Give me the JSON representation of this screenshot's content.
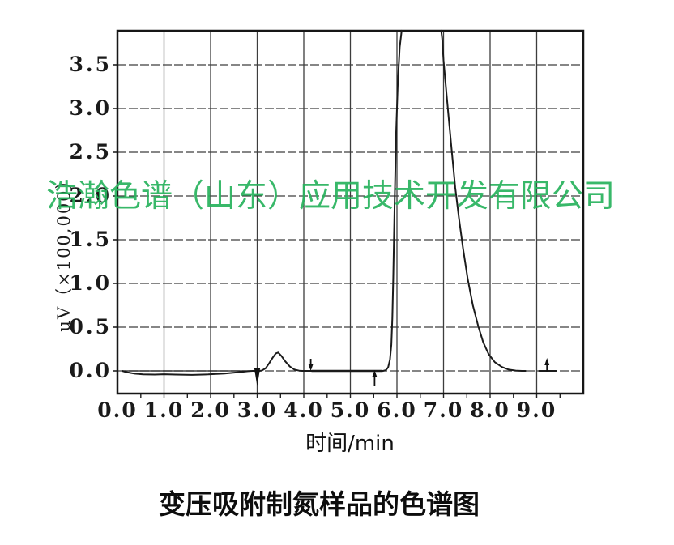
{
  "watermark": {
    "text": "浩瀚色谱（山东）应用技术开发有限公司",
    "color_hex": "#29b35e"
  },
  "caption": "变压吸附制氮样品的色谱图",
  "chart_data": {
    "type": "line",
    "title": "",
    "xlabel": "时间/min",
    "ylabel": "uV（×100,000）",
    "x_tick_labels": [
      "0.0",
      "1.0",
      "2.0",
      "3.0",
      "4.0",
      "5.0",
      "6.0",
      "7.0",
      "8.0",
      "9.0"
    ],
    "y_tick_labels": [
      "3.5",
      "3.0",
      "2.5",
      "2.0",
      "1.5",
      "1.0",
      "0.5",
      "0.0"
    ],
    "xlim_min": [
      0,
      10
    ],
    "ylim_uV": [
      -0.26,
      3.89
    ],
    "grid": true,
    "trace_color_hex": "#1b1b1b",
    "grid_color_hex": "#3d3d3d",
    "peaks": [
      {
        "name": "small-peak",
        "retention_time_min": 3.45,
        "height_uV": 0.21
      },
      {
        "name": "main-peak",
        "start_min": 5.75,
        "end_min": 8.7,
        "height_uV": "off-scale, clipped at plot top between 6.1 and 6.95 min"
      }
    ],
    "event_marks": [
      {
        "time_min": 3.0,
        "style": "wedge-below"
      },
      {
        "time_min": 4.15,
        "style": "arrow-down-above"
      },
      {
        "time_min": 5.52,
        "style": "arrow-up-below"
      },
      {
        "time_min": 9.22,
        "style": "arrow-up-above"
      }
    ],
    "series": [
      {
        "name": "trace-main",
        "width": 2,
        "points": [
          [
            0.1,
            0
          ],
          [
            0.2,
            -0.015
          ],
          [
            0.35,
            -0.03
          ],
          [
            0.55,
            -0.04
          ],
          [
            0.8,
            -0.042
          ],
          [
            1.0,
            -0.038
          ],
          [
            1.25,
            -0.042
          ],
          [
            1.6,
            -0.045
          ],
          [
            1.95,
            -0.04
          ],
          [
            2.3,
            -0.03
          ],
          [
            2.6,
            -0.015
          ],
          [
            2.8,
            -0.004
          ],
          [
            2.9,
            0
          ],
          [
            3.05,
            0
          ],
          [
            3.1,
            0.005
          ],
          [
            3.18,
            0.03
          ],
          [
            3.26,
            0.09
          ],
          [
            3.33,
            0.15
          ],
          [
            3.4,
            0.2
          ],
          [
            3.45,
            0.21
          ],
          [
            3.52,
            0.17
          ],
          [
            3.6,
            0.11
          ],
          [
            3.7,
            0.05
          ],
          [
            3.8,
            0.015
          ],
          [
            3.9,
            0.003
          ],
          [
            3.97,
            0
          ],
          [
            4.1,
            0
          ],
          [
            5.0,
            0
          ],
          [
            5.7,
            0
          ],
          [
            5.76,
            0.008
          ],
          [
            5.81,
            0.04
          ],
          [
            5.85,
            0.13
          ],
          [
            5.88,
            0.3
          ],
          [
            5.9,
            0.6
          ],
          [
            5.92,
            1.05
          ],
          [
            5.95,
            1.9
          ],
          [
            5.98,
            2.7
          ],
          [
            6.02,
            3.3
          ],
          [
            6.06,
            3.7
          ],
          [
            6.1,
            3.89
          ]
        ]
      },
      {
        "name": "trace-descent",
        "width": 2,
        "points": [
          [
            6.95,
            3.89
          ],
          [
            6.97,
            3.8
          ],
          [
            7.0,
            3.55
          ],
          [
            7.05,
            3.25
          ],
          [
            7.1,
            2.95
          ],
          [
            7.17,
            2.55
          ],
          [
            7.25,
            2.1
          ],
          [
            7.33,
            1.75
          ],
          [
            7.42,
            1.4
          ],
          [
            7.52,
            1.05
          ],
          [
            7.63,
            0.75
          ],
          [
            7.74,
            0.52
          ],
          [
            7.85,
            0.33
          ],
          [
            7.97,
            0.19
          ],
          [
            8.1,
            0.1
          ],
          [
            8.25,
            0.045
          ],
          [
            8.4,
            0.015
          ],
          [
            8.55,
            0.004
          ],
          [
            8.68,
            0
          ],
          [
            8.76,
            0
          ]
        ]
      },
      {
        "name": "baseline-overlay",
        "width": 1.3,
        "points": [
          [
            0.12,
            0
          ],
          [
            2.92,
            0
          ]
        ]
      },
      {
        "name": "baseline-bold-segment",
        "width": 2.6,
        "points": [
          [
            4.18,
            0
          ],
          [
            5.68,
            0
          ]
        ]
      },
      {
        "name": "baseline-end-segment",
        "width": 2,
        "points": [
          [
            9.05,
            0
          ],
          [
            9.42,
            0
          ]
        ]
      }
    ]
  }
}
